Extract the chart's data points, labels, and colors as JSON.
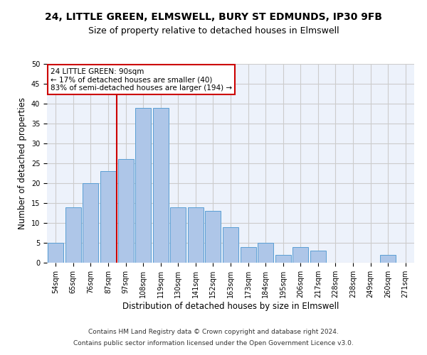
{
  "title_line1": "24, LITTLE GREEN, ELMSWELL, BURY ST EDMUNDS, IP30 9FB",
  "title_line2": "Size of property relative to detached houses in Elmswell",
  "xlabel": "Distribution of detached houses by size in Elmswell",
  "ylabel": "Number of detached properties",
  "categories": [
    "54sqm",
    "65sqm",
    "76sqm",
    "87sqm",
    "97sqm",
    "108sqm",
    "119sqm",
    "130sqm",
    "141sqm",
    "152sqm",
    "163sqm",
    "173sqm",
    "184sqm",
    "195sqm",
    "206sqm",
    "217sqm",
    "228sqm",
    "238sqm",
    "249sqm",
    "260sqm",
    "271sqm"
  ],
  "values": [
    5,
    14,
    20,
    23,
    26,
    39,
    39,
    14,
    14,
    13,
    9,
    4,
    5,
    2,
    4,
    3,
    0,
    0,
    0,
    2,
    0
  ],
  "bar_color": "#aec6e8",
  "bar_edge_color": "#5a9fd4",
  "marker_label_line1": "24 LITTLE GREEN: 90sqm",
  "marker_label_line2": "← 17% of detached houses are smaller (40)",
  "marker_label_line3": "83% of semi-detached houses are larger (194) →",
  "annotation_box_color": "#ffffff",
  "annotation_box_edge": "#cc0000",
  "marker_line_color": "#cc0000",
  "ylim": [
    0,
    50
  ],
  "yticks": [
    0,
    5,
    10,
    15,
    20,
    25,
    30,
    35,
    40,
    45,
    50
  ],
  "grid_color": "#cccccc",
  "bg_color": "#edf2fb",
  "footnote1": "Contains HM Land Registry data © Crown copyright and database right 2024.",
  "footnote2": "Contains public sector information licensed under the Open Government Licence v3.0.",
  "title_fontsize": 10,
  "subtitle_fontsize": 9,
  "tick_fontsize": 7,
  "ylabel_fontsize": 8.5,
  "xlabel_fontsize": 8.5,
  "footnote_fontsize": 6.5
}
